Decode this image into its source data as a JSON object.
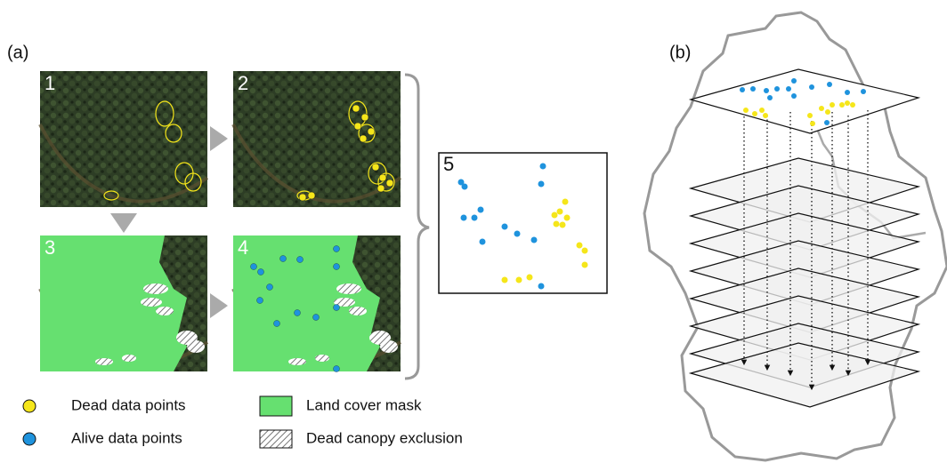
{
  "panel_a": {
    "label": "(a)",
    "steps": [
      "1",
      "2",
      "3",
      "4",
      "5"
    ]
  },
  "panel_b": {
    "label": "(b)"
  },
  "legend": [
    "Dead data points",
    "Alive data points",
    "Land cover mask",
    "Dead canopy exclusion"
  ]
}
